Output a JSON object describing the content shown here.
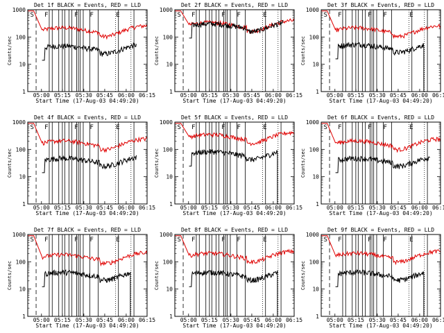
{
  "chart_data": {
    "type": "line",
    "layout": "3x3 grid",
    "yscale": "log",
    "ylim": [
      1,
      1000
    ],
    "ylabel": "Counts/sec",
    "xlabel": "Start Time (17-Aug-03 04:49:20)",
    "x_tick_labels": [
      "05:00",
      "05:15",
      "05:30",
      "05:45",
      "06:00",
      "06:15"
    ],
    "y_tick_labels": [
      "1",
      "10",
      "100",
      "1000"
    ],
    "marker_labels": [
      "S",
      "F",
      "F",
      "F",
      "E"
    ],
    "series_legend": {
      "black": "Events",
      "red": "LLD"
    },
    "colors": {
      "events": "#000000",
      "lld": "#e00000"
    },
    "panels": [
      {
        "title": "Det 1f BLACK = Events, RED = LLD",
        "events_level": 40,
        "lld_level": 180,
        "events_drop": false
      },
      {
        "title": "Det 2f BLACK = Events, RED = LLD",
        "events_level": 260,
        "lld_level": 280,
        "events_drop": false
      },
      {
        "title": "Det 3f BLACK = Events, RED = LLD",
        "events_level": 45,
        "lld_level": 180,
        "events_drop": true
      },
      {
        "title": "Det 4f BLACK = Events, RED = LLD",
        "events_level": 40,
        "lld_level": 170,
        "events_drop": false
      },
      {
        "title": "Det 5f BLACK = Events, RED = LLD",
        "events_level": 70,
        "lld_level": 290,
        "events_drop": true
      },
      {
        "title": "Det 6f BLACK = Events, RED = LLD",
        "events_level": 40,
        "lld_level": 170,
        "events_drop": false
      },
      {
        "title": "Det 7f BLACK = Events, RED = LLD",
        "events_level": 35,
        "lld_level": 150,
        "events_drop": true
      },
      {
        "title": "Det 8f BLACK = Events, RED = LLD",
        "events_level": 35,
        "lld_level": 170,
        "events_drop": true
      },
      {
        "title": "Det 9f BLACK = Events, RED = LLD",
        "events_level": 35,
        "lld_level": 170,
        "events_drop": true
      }
    ]
  }
}
